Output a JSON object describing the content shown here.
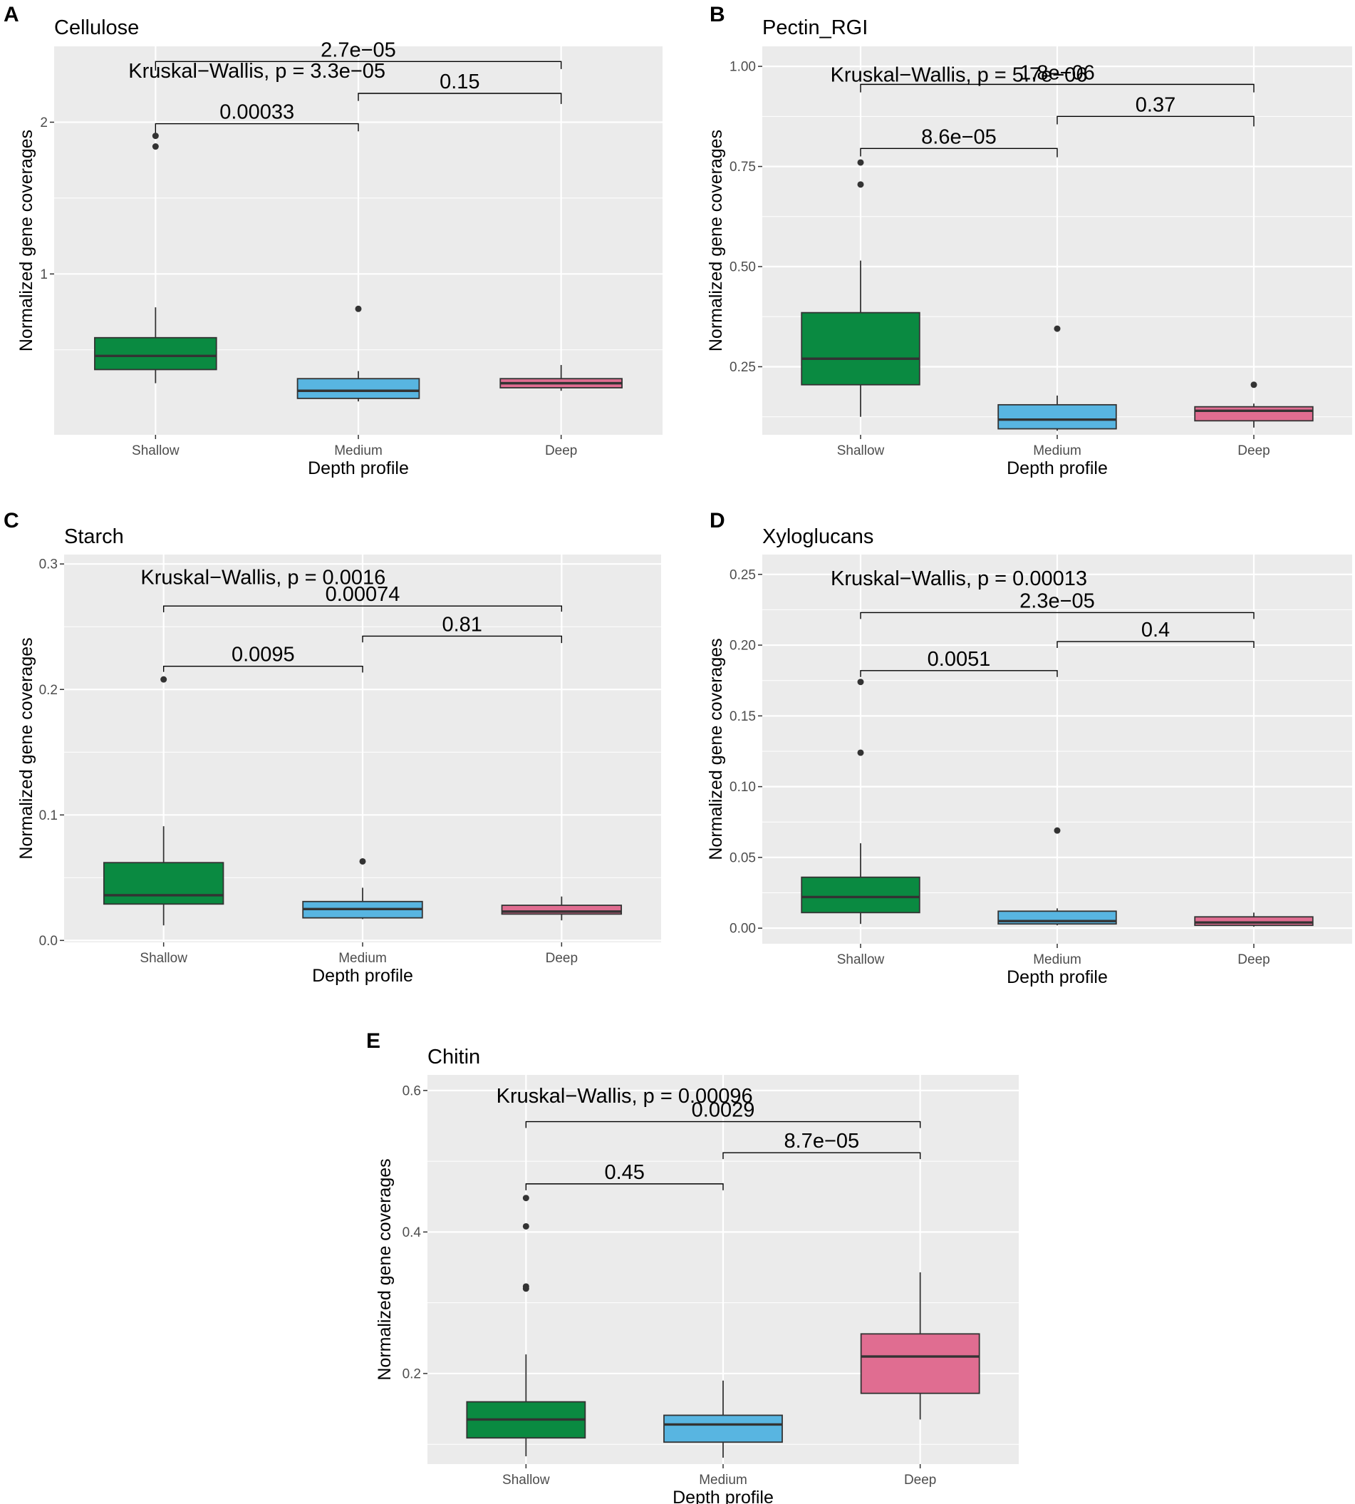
{
  "colors": {
    "panel_bg": "#ebebeb",
    "grid": "#ffffff",
    "shallow": "#0a8a41",
    "medium": "#58b5e1",
    "deep": "#e06d91",
    "box_line": "#333333",
    "tick_text": "#4d4d4d"
  },
  "chart_data": [
    {
      "panel": "A",
      "title": "Cellulose",
      "type": "box",
      "xlabel": "Depth profile",
      "ylabel": "Normalized gene coverages",
      "categories": [
        "Shallow",
        "Medium",
        "Deep"
      ],
      "ylim": [
        -0.06,
        2.5
      ],
      "yticks": [
        1,
        2
      ],
      "ytick_labels": [
        "1",
        "2"
      ],
      "boxes": [
        {
          "q1": 0.37,
          "median": 0.46,
          "q3": 0.58,
          "low": 0.28,
          "high": 0.78,
          "outliers": [
            1.84,
            1.91
          ]
        },
        {
          "q1": 0.18,
          "median": 0.23,
          "q3": 0.31,
          "low": 0.16,
          "high": 0.36,
          "outliers": [
            0.77
          ]
        },
        {
          "q1": 0.25,
          "median": 0.28,
          "q3": 0.31,
          "low": 0.23,
          "high": 0.4,
          "outliers": []
        }
      ],
      "kruskal": "Kruskal−Wallis, p = 3.3e−05",
      "kw_y": 2.34,
      "comparisons": [
        {
          "from": 0,
          "to": 1,
          "label": "0.00033",
          "y": 1.99,
          "left_drop": 0.06,
          "right_drop": 0.05
        },
        {
          "from": 1,
          "to": 2,
          "label": "0.15",
          "y": 2.19,
          "left_drop": 0.05,
          "right_drop": 0.07
        },
        {
          "from": 0,
          "to": 2,
          "label": "2.7e−05",
          "y": 2.4,
          "left_drop": 0.06,
          "right_drop": 0.05
        }
      ]
    },
    {
      "panel": "B",
      "title": "Pectin_RGI",
      "type": "box",
      "xlabel": "Depth profile",
      "ylabel": "Normalized gene coverages",
      "categories": [
        "Shallow",
        "Medium",
        "Deep"
      ],
      "ylim": [
        0.08,
        1.05
      ],
      "yticks": [
        0.25,
        0.5,
        0.75,
        1.0
      ],
      "ytick_labels": [
        "0.25",
        "0.50",
        "0.75",
        "1.00"
      ],
      "boxes": [
        {
          "q1": 0.205,
          "median": 0.27,
          "q3": 0.385,
          "low": 0.125,
          "high": 0.515,
          "outliers": [
            0.705,
            0.76
          ]
        },
        {
          "q1": 0.095,
          "median": 0.118,
          "q3": 0.155,
          "low": 0.09,
          "high": 0.178,
          "outliers": [
            0.345
          ]
        },
        {
          "q1": 0.115,
          "median": 0.14,
          "q3": 0.15,
          "low": 0.098,
          "high": 0.158,
          "outliers": [
            0.205
          ]
        }
      ],
      "kruskal": "Kruskal−Wallis, p = 5.7e−06",
      "kw_y": 0.98,
      "comparisons": [
        {
          "from": 0,
          "to": 1,
          "label": "8.6e−05",
          "y": 0.795,
          "left_drop": 0.02,
          "right_drop": 0.022
        },
        {
          "from": 1,
          "to": 2,
          "label": "0.37",
          "y": 0.875,
          "left_drop": 0.02,
          "right_drop": 0.025
        },
        {
          "from": 0,
          "to": 2,
          "label": "1.8e−06",
          "y": 0.955,
          "left_drop": 0.02,
          "right_drop": 0.02
        }
      ]
    },
    {
      "panel": "C",
      "title": "Starch",
      "type": "box",
      "xlabel": "Depth profile",
      "ylabel": "Normalized gene coverages",
      "categories": [
        "Shallow",
        "Medium",
        "Deep"
      ],
      "ylim": [
        -0.0015,
        0.3075
      ],
      "yticks": [
        0.0,
        0.1,
        0.2,
        0.3
      ],
      "ytick_labels": [
        "0.0",
        "0.1",
        "0.2",
        "0.3"
      ],
      "boxes": [
        {
          "q1": 0.029,
          "median": 0.036,
          "q3": 0.062,
          "low": 0.012,
          "high": 0.091,
          "outliers": [
            0.208
          ]
        },
        {
          "q1": 0.018,
          "median": 0.025,
          "q3": 0.031,
          "low": 0.017,
          "high": 0.042,
          "outliers": [
            0.063
          ]
        },
        {
          "q1": 0.021,
          "median": 0.023,
          "q3": 0.028,
          "low": 0.016,
          "high": 0.035,
          "outliers": []
        }
      ],
      "kruskal": "Kruskal−Wallis, p = 0.0016",
      "kw_y": 0.2895,
      "comparisons": [
        {
          "from": 0,
          "to": 1,
          "label": "0.0095",
          "y": 0.2185,
          "left_drop": 0.0045,
          "right_drop": 0.005
        },
        {
          "from": 1,
          "to": 2,
          "label": "0.81",
          "y": 0.2425,
          "left_drop": 0.005,
          "right_drop": 0.0055
        },
        {
          "from": 0,
          "to": 2,
          "label": "0.00074",
          "y": 0.2665,
          "left_drop": 0.005,
          "right_drop": 0.0045
        }
      ]
    },
    {
      "panel": "D",
      "title": "Xyloglucans",
      "type": "box",
      "xlabel": "Depth profile",
      "ylabel": "Normalized gene coverages",
      "categories": [
        "Shallow",
        "Medium",
        "Deep"
      ],
      "ylim": [
        -0.011,
        0.264
      ],
      "yticks": [
        0.0,
        0.05,
        0.1,
        0.15,
        0.2,
        0.25
      ],
      "ytick_labels": [
        "0.00",
        "0.05",
        "0.10",
        "0.15",
        "0.20",
        "0.25"
      ],
      "boxes": [
        {
          "q1": 0.011,
          "median": 0.022,
          "q3": 0.036,
          "low": 0.003,
          "high": 0.06,
          "outliers": [
            0.124,
            0.174
          ]
        },
        {
          "q1": 0.003,
          "median": 0.005,
          "q3": 0.012,
          "low": 0.002,
          "high": 0.014,
          "outliers": [
            0.069
          ]
        },
        {
          "q1": 0.002,
          "median": 0.004,
          "q3": 0.008,
          "low": 0.001,
          "high": 0.011,
          "outliers": []
        }
      ],
      "kruskal": "Kruskal−Wallis, p = 0.00013",
      "kw_y": 0.2475,
      "comparisons": [
        {
          "from": 0,
          "to": 1,
          "label": "0.0051",
          "y": 0.182,
          "left_drop": 0.0045,
          "right_drop": 0.0045
        },
        {
          "from": 1,
          "to": 2,
          "label": "0.4",
          "y": 0.2025,
          "left_drop": 0.0045,
          "right_drop": 0.0045
        },
        {
          "from": 0,
          "to": 2,
          "label": "2.3e−05",
          "y": 0.223,
          "left_drop": 0.0045,
          "right_drop": 0.0045
        }
      ]
    },
    {
      "panel": "E",
      "title": "Chitin",
      "type": "box",
      "xlabel": "Depth profile",
      "ylabel": "Normalized gene coverages",
      "categories": [
        "Shallow",
        "Medium",
        "Deep"
      ],
      "ylim": [
        0.072,
        0.622
      ],
      "yticks": [
        0.2,
        0.4,
        0.6
      ],
      "ytick_labels": [
        "0.2",
        "0.4",
        "0.6"
      ],
      "boxes": [
        {
          "q1": 0.109,
          "median": 0.135,
          "q3": 0.16,
          "low": 0.083,
          "high": 0.227,
          "outliers": [
            0.32,
            0.323,
            0.408,
            0.448
          ]
        },
        {
          "q1": 0.103,
          "median": 0.128,
          "q3": 0.141,
          "low": 0.081,
          "high": 0.19,
          "outliers": []
        },
        {
          "q1": 0.172,
          "median": 0.224,
          "q3": 0.256,
          "low": 0.135,
          "high": 0.343,
          "outliers": []
        }
      ],
      "kruskal": "Kruskal−Wallis, p = 0.00096",
      "kw_y": 0.593,
      "comparisons": [
        {
          "from": 0,
          "to": 1,
          "label": "0.45",
          "y": 0.468,
          "left_drop": 0.009,
          "right_drop": 0.009
        },
        {
          "from": 1,
          "to": 2,
          "label": "8.7e−05",
          "y": 0.512,
          "left_drop": 0.009,
          "right_drop": 0.009
        },
        {
          "from": 0,
          "to": 2,
          "label": "0.0029",
          "y": 0.556,
          "left_drop": 0.009,
          "right_drop": 0.009
        }
      ]
    }
  ]
}
